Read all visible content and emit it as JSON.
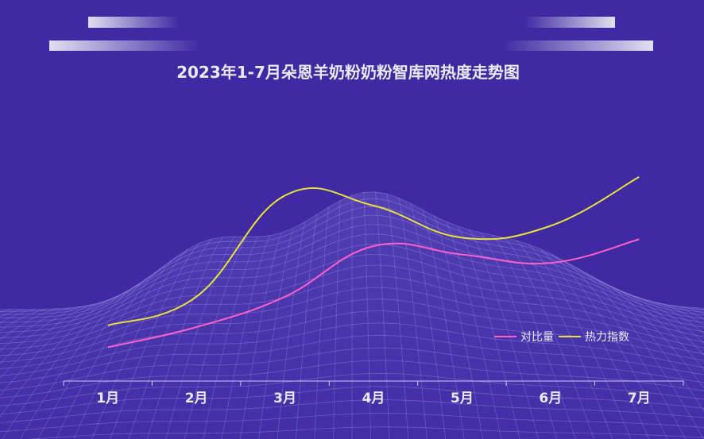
{
  "chart_data": {
    "type": "line",
    "title": "2023年1-7月朵恩羊奶粉奶粉智库网热度走势图",
    "categories": [
      "1月",
      "2月",
      "3月",
      "4月",
      "5月",
      "6月",
      "7月"
    ],
    "series": [
      {
        "name": "对比量",
        "color": "#ff5fc8",
        "values": [
          20,
          32,
          50,
          80,
          75,
          70,
          84
        ]
      },
      {
        "name": "热力指数",
        "color": "#e7e23a",
        "values": [
          33,
          50,
          110,
          104,
          85,
          92,
          121
        ]
      }
    ],
    "ylim": [
      0,
      160
    ],
    "legend_position": "bottom-right",
    "grid": false
  }
}
